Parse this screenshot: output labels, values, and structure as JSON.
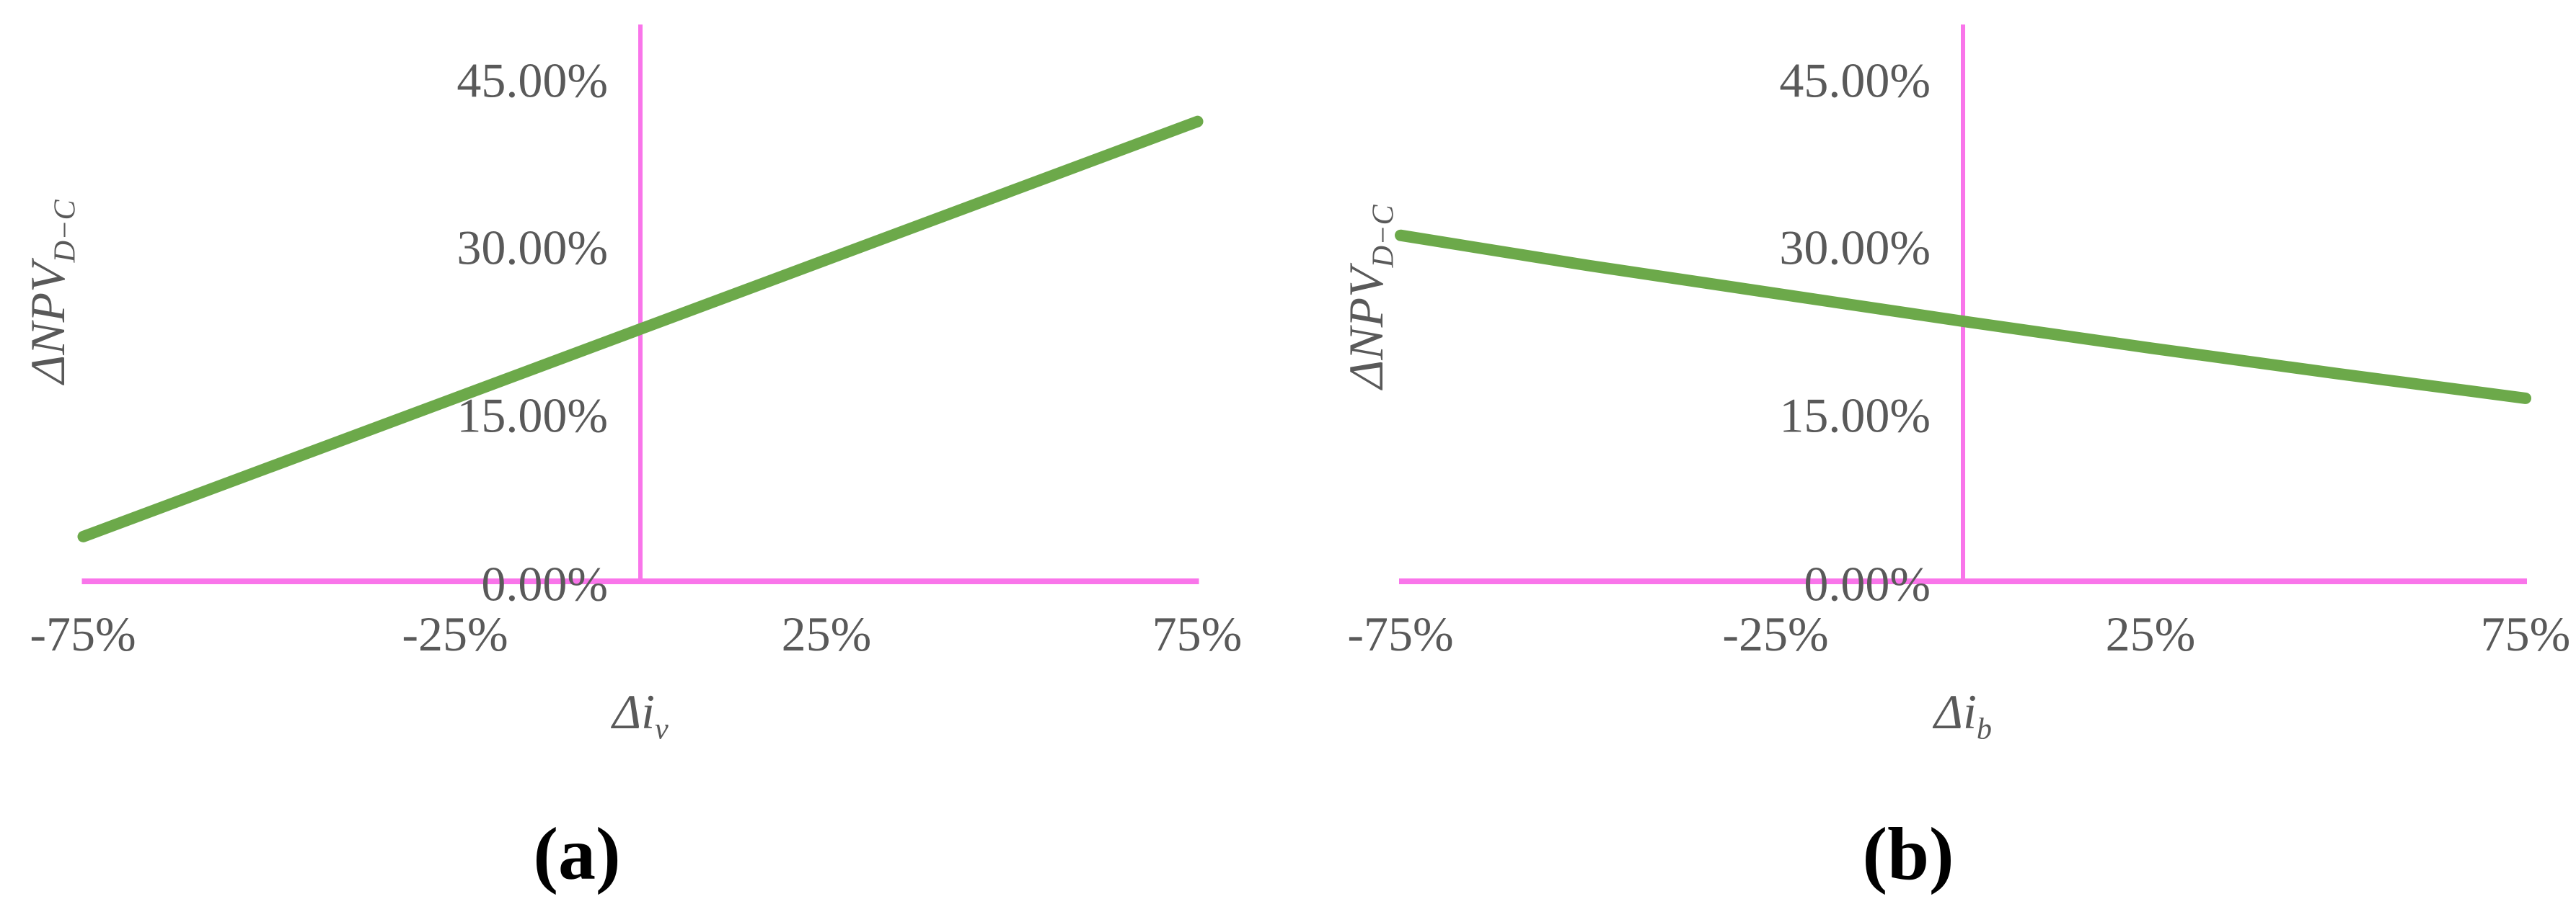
{
  "figure": {
    "background": "#ffffff",
    "description": "Sensitivity analysis: NPV difference (D minus C) versus percentage change in interest rate parameters"
  },
  "colors": {
    "line_green": "#6CA94A",
    "axis_pink": "#F975EA",
    "tick_text": "#595959",
    "caption_text": "#000000"
  },
  "chart_data": [
    {
      "type": "line",
      "panel_caption": "(a)",
      "x_axis_title_base": "Δi",
      "x_axis_title_sub": "v",
      "y_axis_title_base": "ΔNPV",
      "y_axis_title_sub": "D−C",
      "x_tick_labels": [
        "-75%",
        "-25%",
        "25%",
        "75%"
      ],
      "x_tick_values": [
        -75,
        -25,
        25,
        75
      ],
      "y_tick_labels": [
        "0.00%",
        "15.00%",
        "30.00%",
        "45.00%"
      ],
      "y_tick_values": [
        0,
        15,
        30,
        45
      ],
      "x": [
        -75,
        -50,
        -25,
        0,
        25,
        50,
        75
      ],
      "values": [
        4.2,
        10.4,
        16.6,
        22.8,
        29.0,
        35.2,
        41.4
      ],
      "xlim": [
        -75,
        75
      ],
      "ylim": [
        0,
        45
      ],
      "grid": false,
      "legend": null,
      "line_color": "#6CA94A",
      "axis_color": "#F975EA"
    },
    {
      "type": "line",
      "panel_caption": "(b)",
      "x_axis_title_base": "Δi",
      "x_axis_title_sub": "b",
      "y_axis_title_base": "ΔNPV",
      "y_axis_title_sub": "D−C",
      "x_tick_labels": [
        "-75%",
        "-25%",
        "25%",
        "75%"
      ],
      "x_tick_values": [
        -75,
        -25,
        25,
        75
      ],
      "y_tick_labels": [
        "0.00%",
        "15.00%",
        "30.00%",
        "45.00%"
      ],
      "y_tick_values": [
        0,
        15,
        30,
        45
      ],
      "x": [
        -75,
        -50,
        -25,
        0,
        25,
        50,
        75
      ],
      "values": [
        31.2,
        28.5,
        26.0,
        23.5,
        21.1,
        18.8,
        16.6
      ],
      "xlim": [
        -75,
        75
      ],
      "ylim": [
        0,
        45
      ],
      "grid": false,
      "legend": null,
      "line_color": "#6CA94A",
      "axis_color": "#F975EA"
    }
  ]
}
